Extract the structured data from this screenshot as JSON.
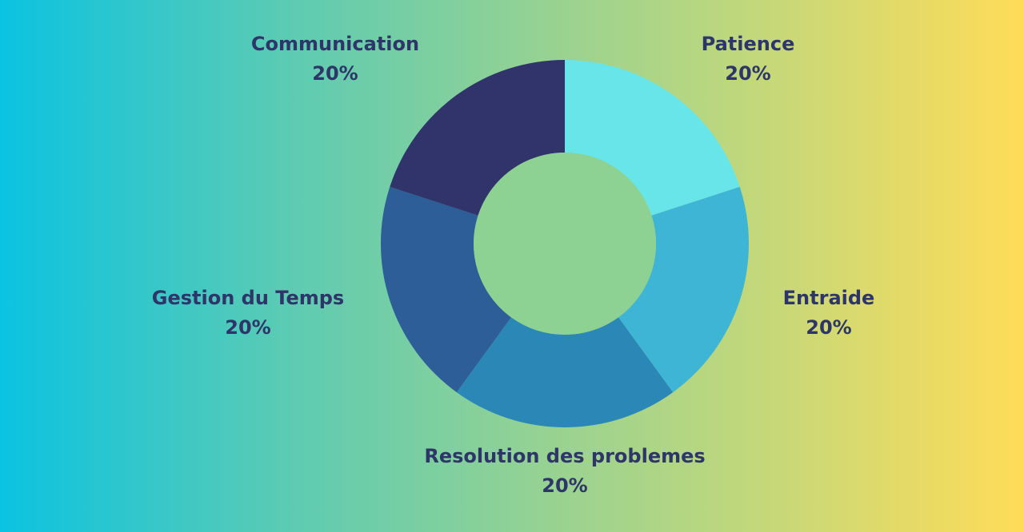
{
  "chart_data": {
    "type": "pie",
    "donut": true,
    "categories": [
      "Patience",
      "Entraide",
      "Resolution des problemes",
      "Gestion du Temps",
      "Communication"
    ],
    "values": [
      20,
      20,
      20,
      20,
      20
    ],
    "value_labels": [
      "20%",
      "20%",
      "20%",
      "20%",
      "20%"
    ],
    "colors": [
      "#68e5e8",
      "#3fb5d5",
      "#2b88b6",
      "#2d5e98",
      "#31336b"
    ],
    "hole_color": "#8dd193",
    "start": "top, clockwise",
    "legend": "none"
  }
}
